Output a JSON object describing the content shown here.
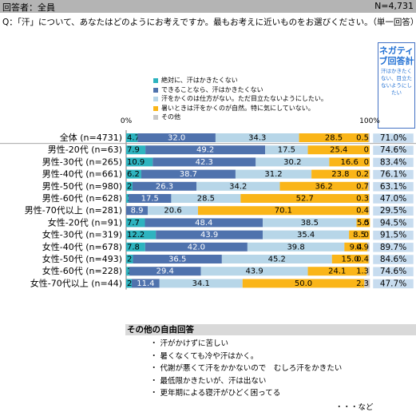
{
  "header": {
    "respondents_label": "回答者：全員",
    "n_label": "N=4,731"
  },
  "question": "Q：「汗」について、あなたはどのようにお考えですか。最もお考えに近いものをお選びください。（単一回答）",
  "negative_box": {
    "title": "ネガティブ回答計",
    "subtitle": "汗はかきたくない、目立たないようにしたい"
  },
  "colors": [
    "#2eb3bf",
    "#4f72ad",
    "#b7d6e8",
    "#fab518",
    "#c8c8c8"
  ],
  "chart_data": {
    "type": "bar",
    "orientation": "horizontal",
    "stacked": true,
    "xlim": [
      0,
      100
    ],
    "tick_labels": [
      "0%",
      "100%"
    ],
    "legend": [
      "絶対に、汗はかきたくない",
      "できることなら、汗はかきたくない",
      "汗をかくのは仕方がない。ただ目立たないようにしたい。",
      "暑いときは汗をかくのが自然。特に気にしていない。",
      "その他"
    ],
    "categories": [
      "全体 (n=4731)",
      "男性-20代 (n=63)",
      "男性-30代 (n=265)",
      "男性-40代 (n=661)",
      "男性-50代 (n=980)",
      "男性-60代 (n=628)",
      "男性-70代以上 (n=281)",
      "女性-20代 (n=91)",
      "女性-30代 (n=319)",
      "女性-40代 (n=678)",
      "女性-50代 (n=493)",
      "女性-60代 (n=228)",
      "女性-70代以上 (n=44)"
    ],
    "series": [
      {
        "name": "絶対に、汗はかきたくない",
        "values": [
          4.7,
          7.9,
          10.9,
          6.2,
          2.6,
          1.0,
          0.0,
          7.7,
          12.2,
          7.8,
          2.8,
          1.3,
          2.3
        ]
      },
      {
        "name": "できることなら、汗はかきたくない",
        "values": [
          32.0,
          49.2,
          42.3,
          38.7,
          26.3,
          17.5,
          8.9,
          48.4,
          43.9,
          42.0,
          36.5,
          29.4,
          11.4
        ]
      },
      {
        "name": "汗をかくのは仕方がない。ただ目立たないようにしたい。",
        "values": [
          34.3,
          17.5,
          30.2,
          31.2,
          34.2,
          28.5,
          20.6,
          38.5,
          35.4,
          39.8,
          45.2,
          43.9,
          34.1
        ]
      },
      {
        "name": "暑いときは汗をかくのが自然。特に気にしていない。",
        "values": [
          28.5,
          25.4,
          16.6,
          23.8,
          36.2,
          52.7,
          70.1,
          5.5,
          8.5,
          9.4,
          15.0,
          24.1,
          50.0
        ]
      },
      {
        "name": "その他",
        "values": [
          0.5,
          0.0,
          0.0,
          0.2,
          0.7,
          0.3,
          0.4,
          0.0,
          0.0,
          0.9,
          0.4,
          1.3,
          2.3
        ]
      }
    ],
    "value_labels": [
      [
        "4.7",
        "32.0",
        "34.3",
        "28.5",
        "0.5"
      ],
      [
        "7.9",
        "49.2",
        "17.5",
        "25.4",
        "0"
      ],
      [
        "10.9",
        "42.3",
        "30.2",
        "16.6",
        "0"
      ],
      [
        "6.2",
        "38.7",
        "31.2",
        "23.8",
        "0.2"
      ],
      [
        "2.6",
        "26.3",
        "34.2",
        "36.2",
        "0.7"
      ],
      [
        "1.0",
        "17.5",
        "28.5",
        "52.7",
        "0.3"
      ],
      [
        "0",
        "8.9",
        "20.6",
        "70.1",
        "0.4"
      ],
      [
        "7.7",
        "48.4",
        "38.5",
        "5.5",
        "0"
      ],
      [
        "12.2",
        "43.9",
        "35.4",
        "8.5",
        "0"
      ],
      [
        "7.8",
        "42.0",
        "39.8",
        "9.4",
        "0.9"
      ],
      [
        "2.8",
        "36.5",
        "45.2",
        "15.0",
        "0.4"
      ],
      [
        "1.3",
        "29.4",
        "43.9",
        "24.1",
        "1.3"
      ],
      [
        "2.3",
        "11.4",
        "34.1",
        "50.0",
        "2.3"
      ]
    ],
    "negative_total": [
      "71.0%",
      "74.6%",
      "83.4%",
      "76.1%",
      "63.1%",
      "47.0%",
      "29.5%",
      "94.5%",
      "91.5%",
      "89.7%",
      "84.6%",
      "74.6%",
      "47.7%"
    ]
  },
  "other_answers": {
    "title": "その他の自由回答",
    "items": [
      "・ 汗がかけずに苦しい",
      "・ 暑くなくても冷や汗はかく。",
      "・ 代謝が悪くて汗をかかないので　むしろ汗をかきたい",
      "・ 最低限かきたいが、汗は出ない",
      "・ 更年期による寝汗がひどく困ってる"
    ],
    "etc": "・・・など"
  }
}
